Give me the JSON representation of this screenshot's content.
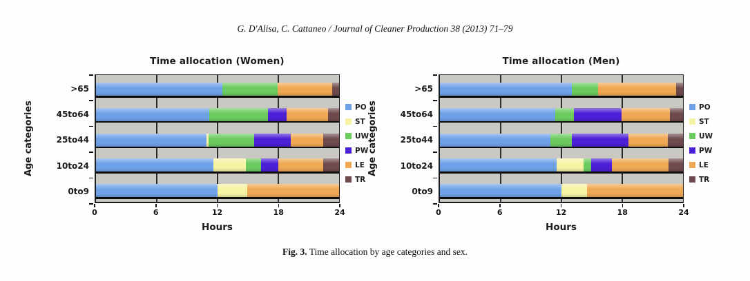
{
  "page": {
    "header": "G. D'Alisa, C. Cattaneo / Journal of Cleaner Production 38 (2013) 71–79",
    "caption_label": "Fig. 3.",
    "caption_text": "Time allocation by age categories and sex."
  },
  "colors": {
    "PO": "#6FA1E8",
    "ST": "#F6F3A4",
    "UW": "#6BCB5F",
    "PW": "#4B1FD6",
    "LE": "#EFA853",
    "TR": "#6E4A4E",
    "plot_background": "#C9C8C3",
    "axis": "#1C1C1C"
  },
  "chart_data": [
    {
      "type": "bar",
      "orientation": "horizontal",
      "stacked": true,
      "title": "Time allocation (Women)",
      "xlabel": "Hours",
      "ylabel": "Age categories",
      "xlim": [
        0,
        24
      ],
      "xticks": [
        0,
        6,
        12,
        18,
        24
      ],
      "grid": "vertical gridlines at 6, 12, 18",
      "legend_position": "right",
      "units": "hours",
      "categories": [
        ">65",
        "45to64",
        "25to44",
        "10to24",
        "0to9"
      ],
      "legend": [
        "PO",
        "ST",
        "UW",
        "PW",
        "LE",
        "TR"
      ],
      "series": [
        {
          "name": "PO",
          "values": [
            12.5,
            11.2,
            10.9,
            11.6,
            12.0
          ]
        },
        {
          "name": "ST",
          "values": [
            0,
            0,
            0.2,
            3.2,
            2.9
          ]
        },
        {
          "name": "UW",
          "values": [
            5.4,
            5.8,
            4.5,
            1.5,
            0
          ]
        },
        {
          "name": "PW",
          "values": [
            0,
            1.8,
            3.6,
            1.7,
            0
          ]
        },
        {
          "name": "LE",
          "values": [
            5.4,
            4.1,
            3.2,
            4.4,
            9.1
          ]
        },
        {
          "name": "TR",
          "values": [
            0.7,
            1.1,
            1.6,
            1.6,
            0
          ]
        }
      ]
    },
    {
      "type": "bar",
      "orientation": "horizontal",
      "stacked": true,
      "title": "Time allocation (Men)",
      "xlabel": "Hours",
      "ylabel": "Age categories",
      "xlim": [
        0,
        24
      ],
      "xticks": [
        0,
        6,
        12,
        18,
        24
      ],
      "grid": "vertical gridlines at 6, 12, 18",
      "legend_position": "right",
      "units": "hours",
      "categories": [
        ">65",
        "45to64",
        "25to44",
        "10to24",
        "0to9"
      ],
      "legend": [
        "PO",
        "ST",
        "UW",
        "PW",
        "LE",
        "TR"
      ],
      "series": [
        {
          "name": "PO",
          "values": [
            13.0,
            11.4,
            10.9,
            11.5,
            12.0
          ]
        },
        {
          "name": "ST",
          "values": [
            0,
            0,
            0,
            2.7,
            2.5
          ]
        },
        {
          "name": "UW",
          "values": [
            2.6,
            1.8,
            2.1,
            0.7,
            0
          ]
        },
        {
          "name": "PW",
          "values": [
            0,
            4.7,
            5.6,
            2.1,
            0
          ]
        },
        {
          "name": "LE",
          "values": [
            7.7,
            4.8,
            3.9,
            5.6,
            9.5
          ]
        },
        {
          "name": "TR",
          "values": [
            0.7,
            1.3,
            1.5,
            1.4,
            0
          ]
        }
      ]
    }
  ]
}
